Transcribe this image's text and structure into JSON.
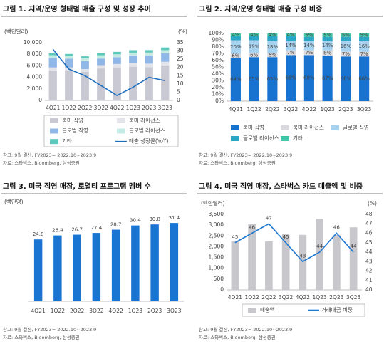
{
  "chart_data": [
    {
      "type": "stacked_bar",
      "title": "그림 1. 지역/운영 형태별 매출 구성 및 성장 추이",
      "ylabel": "(백만달러)",
      "y2label": "(%)",
      "categories": [
        "4Q21",
        "1Q22",
        "2Q22",
        "3Q22",
        "4Q22",
        "1Q23",
        "2Q23",
        "3Q23"
      ],
      "series": [
        {
          "name": "북미 직영",
          "type": "bar",
          "color": "#c9c9d3",
          "values": [
            5220,
            5230,
            4970,
            5540,
            5720,
            5840,
            5760,
            6050
          ]
        },
        {
          "name": "북미 라이선스",
          "type": "bar",
          "color": "#e3e3ea",
          "values": [
            490,
            480,
            460,
            570,
            590,
            700,
            610,
            640
          ]
        },
        {
          "name": "글로벌 직영",
          "type": "bar",
          "color": "#8fb8e8",
          "values": [
            1630,
            1530,
            1370,
            1140,
            1180,
            1220,
            1400,
            1470
          ]
        },
        {
          "name": "글로벌 라이선스",
          "type": "bar",
          "color": "#c3ebe4",
          "values": [
            490,
            480,
            530,
            570,
            500,
            520,
            520,
            550
          ]
        },
        {
          "name": "기타",
          "type": "bar",
          "color": "#5ec8bc",
          "values": [
            320,
            330,
            310,
            330,
            420,
            430,
            430,
            460
          ]
        },
        {
          "name": "매출 성장률(YoY)",
          "type": "line",
          "axis": "y2",
          "color": "#1f6fc0",
          "values": [
            31,
            19,
            15,
            9,
            3,
            8,
            14,
            12
          ]
        }
      ],
      "ylim": [
        0,
        10000
      ],
      "yticks": [
        0,
        {
          "value": 2000,
          "label": "2,000"
        },
        {
          "value": 4000,
          "label": "4,000"
        },
        {
          "value": 6000,
          "label": "6,000"
        },
        {
          "value": 8000,
          "label": "8,000"
        },
        {
          "value": 10000,
          "label": "10,000"
        }
      ],
      "y2lim": [
        0,
        35
      ],
      "y2ticks": [
        0,
        5,
        10,
        15,
        20,
        25,
        30,
        35
      ],
      "legend": "bottom",
      "note": "참고: 9월 결산, FY2023= 2022.10~2023.9",
      "source": "자료: 스타벅스, Bloomberg, 삼성증권"
    },
    {
      "type": "stacked_bar",
      "title": "그림 2. 지역/운영 형태별 매출 구성 비중",
      "categories": [
        "4Q21",
        "1Q22",
        "2Q22",
        "3Q22",
        "4Q22",
        "1Q23",
        "2Q23",
        "3Q23"
      ],
      "series": [
        {
          "name": "북미 직영",
          "type": "bar",
          "color": "#1872cf",
          "values": [
            64,
            65,
            65,
            68,
            68,
            67,
            66,
            66
          ],
          "value_labels": [
            "64%",
            "65%",
            "65%",
            "68%",
            "68%",
            "67%",
            "66%",
            "66%"
          ]
        },
        {
          "name": "북미 라이선스",
          "type": "bar",
          "color": "#d9d9de",
          "values": [
            6,
            6,
            6,
            7,
            7,
            8,
            7,
            7
          ],
          "value_labels": [
            "6%",
            "6%",
            "6%",
            "7%",
            "7%",
            "8%",
            "7%",
            "7%"
          ]
        },
        {
          "name": "글로벌 직영",
          "type": "bar",
          "color": "#a6d2ef",
          "values": [
            20,
            19,
            18,
            14,
            14,
            14,
            16,
            16
          ],
          "value_labels": [
            "20%",
            "19%",
            "18%",
            "14%",
            "14%",
            "14%",
            "16%",
            "16%"
          ]
        },
        {
          "name": "글로벌 라이선스",
          "type": "bar",
          "color": "#2aa6c6",
          "values": [
            6,
            6,
            7,
            7,
            6,
            6,
            6,
            6
          ]
        },
        {
          "name": "기타",
          "type": "bar",
          "color": "#3fc6a6",
          "values": [
            4,
            4,
            4,
            4,
            5,
            5,
            5,
            5
          ],
          "value_labels": [
            "4%",
            "4%",
            "4%",
            "4%",
            "5%",
            "5%",
            "5%",
            "5%"
          ]
        }
      ],
      "ylim": [
        0,
        100
      ],
      "yticks": [
        {
          "value": 0,
          "label": "0%"
        },
        {
          "value": 10,
          "label": "10%"
        },
        {
          "value": 20,
          "label": "20%"
        },
        {
          "value": 30,
          "label": "30%"
        },
        {
          "value": 40,
          "label": "40%"
        },
        {
          "value": 50,
          "label": "50%"
        },
        {
          "value": 60,
          "label": "60%"
        },
        {
          "value": 70,
          "label": "70%"
        },
        {
          "value": 80,
          "label": "80%"
        },
        {
          "value": 90,
          "label": "90%"
        },
        {
          "value": 100,
          "label": "100%"
        }
      ],
      "legend": "bottom",
      "note": "참고: 9월 결산, FY2023= 2022.10~2023.9",
      "source": "자료: 스타벅스, Bloomberg, 삼성증권"
    },
    {
      "type": "bar",
      "title": "그림 3. 미국 직영 매장, 로열티 프로그램 멤버 수",
      "ylabel": "(백만명)",
      "categories": [
        "4Q21",
        "1Q22",
        "2Q22",
        "3Q22",
        "4Q22",
        "1Q23",
        "2Q23",
        "3Q23"
      ],
      "series": [
        {
          "type": "bar",
          "color": "#1a74d2",
          "data_labels": true,
          "values": [
            24.8,
            26.4,
            26.7,
            27.4,
            28.7,
            30.4,
            30.8,
            31.4
          ]
        }
      ],
      "ylim": [
        0,
        38
      ],
      "note": "참고: 9월 결산, FY2023= 2022.10~2023.9",
      "source": "자료: 스타벅스, Bloomberg, 삼성증권"
    },
    {
      "type": "bar",
      "title": "그림 4. 미국 직영 매장, 스타벅스 카드 매출액 및 비중",
      "ylabel": "(백만달러)",
      "y2label": "(%)",
      "categories": [
        "4Q21",
        "1Q22",
        "2Q22",
        "3Q22",
        "4Q22",
        "1Q23",
        "2Q23",
        "3Q23"
      ],
      "series": [
        {
          "name": "매출액",
          "type": "bar",
          "color": "#c8c8cc",
          "values": [
            2250,
            3050,
            2250,
            2600,
            2550,
            3300,
            2550,
            2900
          ]
        },
        {
          "name": "거래대금 비중",
          "type": "line",
          "axis": "y2",
          "color": "#1f78d1",
          "data_labels": true,
          "values": [
            45,
            46,
            47,
            45,
            43,
            44,
            46,
            44
          ]
        }
      ],
      "ylim": [
        0,
        3500
      ],
      "yticks": [
        0,
        500,
        {
          "value": 1000,
          "label": "1,000"
        },
        {
          "value": 1500,
          "label": "1,500"
        },
        {
          "value": 2000,
          "label": "2,000"
        },
        {
          "value": 2500,
          "label": "2,500"
        },
        {
          "value": 3000,
          "label": "3,000"
        },
        {
          "value": 3500,
          "label": "3,500"
        }
      ],
      "y2lim": [
        40,
        48
      ],
      "y2ticks": [
        40,
        41,
        42,
        43,
        44,
        45,
        46,
        47,
        48
      ],
      "legend": "bottom",
      "note": "참고: 9월 결산, FY2023= 2022.10~2023.9",
      "source": "자료: 스타벅스, Bloomberg, 삼성증권"
    }
  ]
}
